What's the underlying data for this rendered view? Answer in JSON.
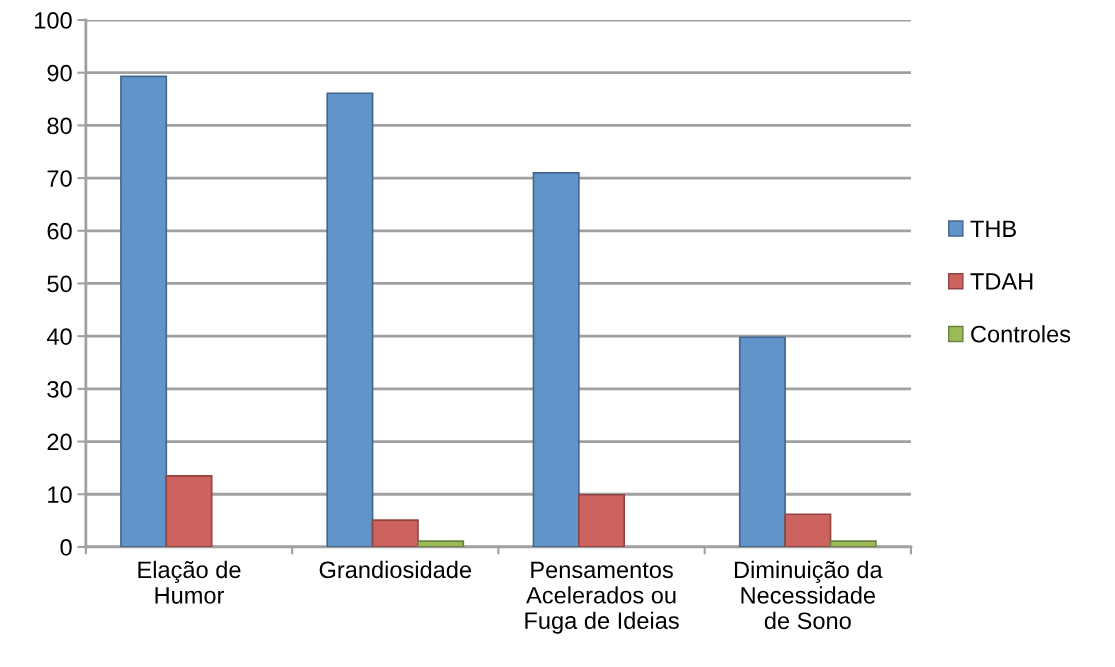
{
  "chart_data": {
    "type": "bar",
    "categories": [
      "Elação de\nHumor",
      "Grandiosidade",
      "Pensamentos\nAcelerados ou\nFuga de Ideias",
      "Diminuição da\nNecessidade\nde Sono"
    ],
    "series": [
      {
        "name": "THB",
        "color": "#6195c9",
        "values": [
          89.3,
          86.1,
          71.0,
          39.8
        ]
      },
      {
        "name": "TDAH",
        "color": "#cd635e",
        "values": [
          13.5,
          5.1,
          9.9,
          6.2
        ]
      },
      {
        "name": "Controles",
        "color": "#9bbb59",
        "values": [
          null,
          1.1,
          null,
          1.1
        ]
      }
    ],
    "ylim": [
      0,
      100
    ],
    "yticks": [
      0,
      10,
      20,
      30,
      40,
      50,
      60,
      70,
      80,
      90,
      100
    ],
    "grid": "y",
    "legend": "right"
  }
}
